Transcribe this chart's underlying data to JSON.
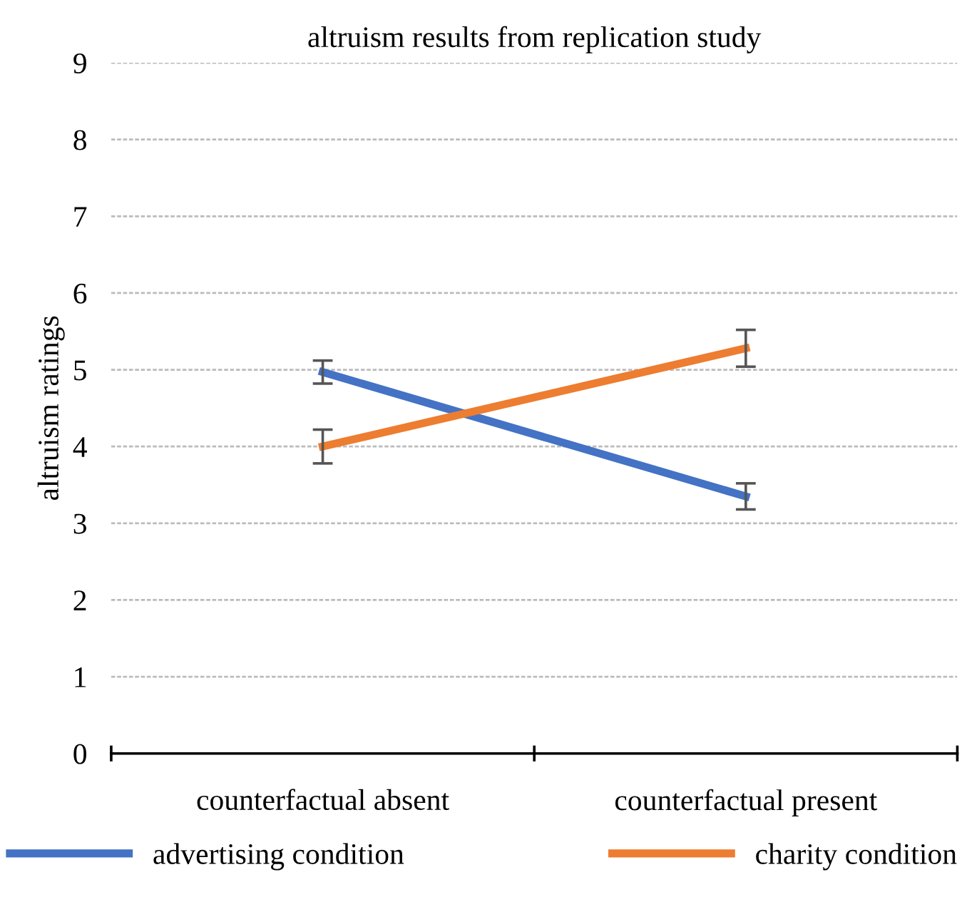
{
  "chart_data": {
    "type": "line",
    "title": "altruism results from replication study",
    "ylabel": "altruism ratings",
    "categories": [
      "counterfactual absent",
      "counterfactual present"
    ],
    "series": [
      {
        "name": "advertising condition",
        "color": "#4472c4",
        "values": [
          4.97,
          3.35
        ],
        "errors": [
          0.15,
          0.17
        ]
      },
      {
        "name": "charity condition",
        "color": "#ed7d31",
        "values": [
          4.0,
          5.28
        ],
        "errors": [
          0.22,
          0.24
        ]
      }
    ],
    "ylim": [
      0,
      9
    ],
    "yticks": [
      0,
      1,
      2,
      3,
      4,
      5,
      6,
      7,
      8,
      9
    ],
    "grid": "y",
    "legend": "bottom",
    "marker": "none",
    "line_style": "solid"
  }
}
